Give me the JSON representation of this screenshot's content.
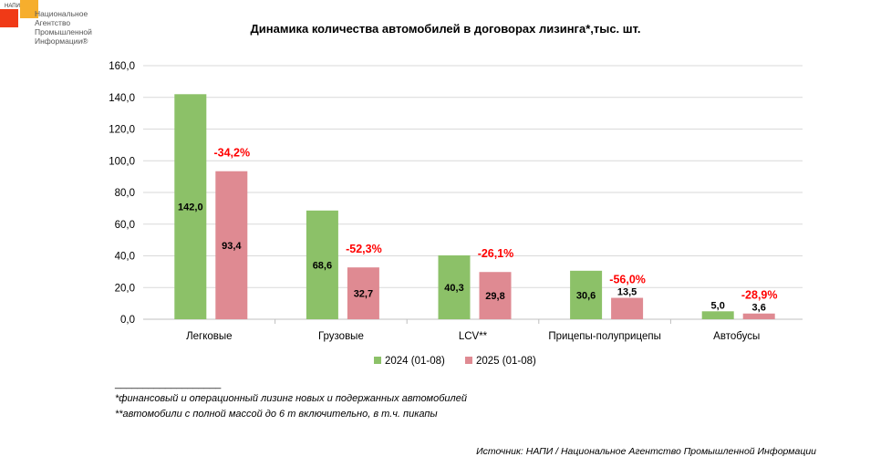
{
  "logo": {
    "abbr": "НАПИ",
    "lines": [
      "Национальное",
      "Агентство",
      "Промышленной",
      "Информации®"
    ]
  },
  "chart_data": {
    "type": "bar",
    "title": "Динамика количества автомобилей в договорах лизинга*,тыс. шт.",
    "categories": [
      "Легковые",
      "Грузовые",
      "LCV**",
      "Прицепы-полуприцепы",
      "Автобусы"
    ],
    "series": [
      {
        "name": "2024 (01-08)",
        "color": "#8cc168",
        "values": [
          142.0,
          68.6,
          40.3,
          30.6,
          5.0
        ],
        "labels": [
          "142,0",
          "68,6",
          "40,3",
          "30,6",
          "5,0"
        ]
      },
      {
        "name": "2025 (01-08)",
        "color": "#df8a92",
        "values": [
          93.4,
          32.7,
          29.8,
          13.5,
          3.6
        ],
        "labels": [
          "93,4",
          "32,7",
          "29,8",
          "13,5",
          "3,6"
        ]
      }
    ],
    "changes": [
      "-34,2%",
      "-52,3%",
      "-26,1%",
      "-56,0%",
      "-28,9%"
    ],
    "ylim": [
      0,
      160
    ],
    "yticks": [
      "0,0",
      "20,0",
      "40,0",
      "60,0",
      "80,0",
      "100,0",
      "120,0",
      "140,0",
      "160,0"
    ],
    "grid": true,
    "legend": "bottom"
  },
  "footnotes": {
    "rule": "___________________",
    "note1": "*финансовый и операционный лизинг новых и подержанных автомобилей",
    "note2": "**автомобили с полной массой до 6 т включительно, в т.ч. пикапы"
  },
  "source": "Источник: НАПИ / Национальное Агентство Промышленной Информации"
}
